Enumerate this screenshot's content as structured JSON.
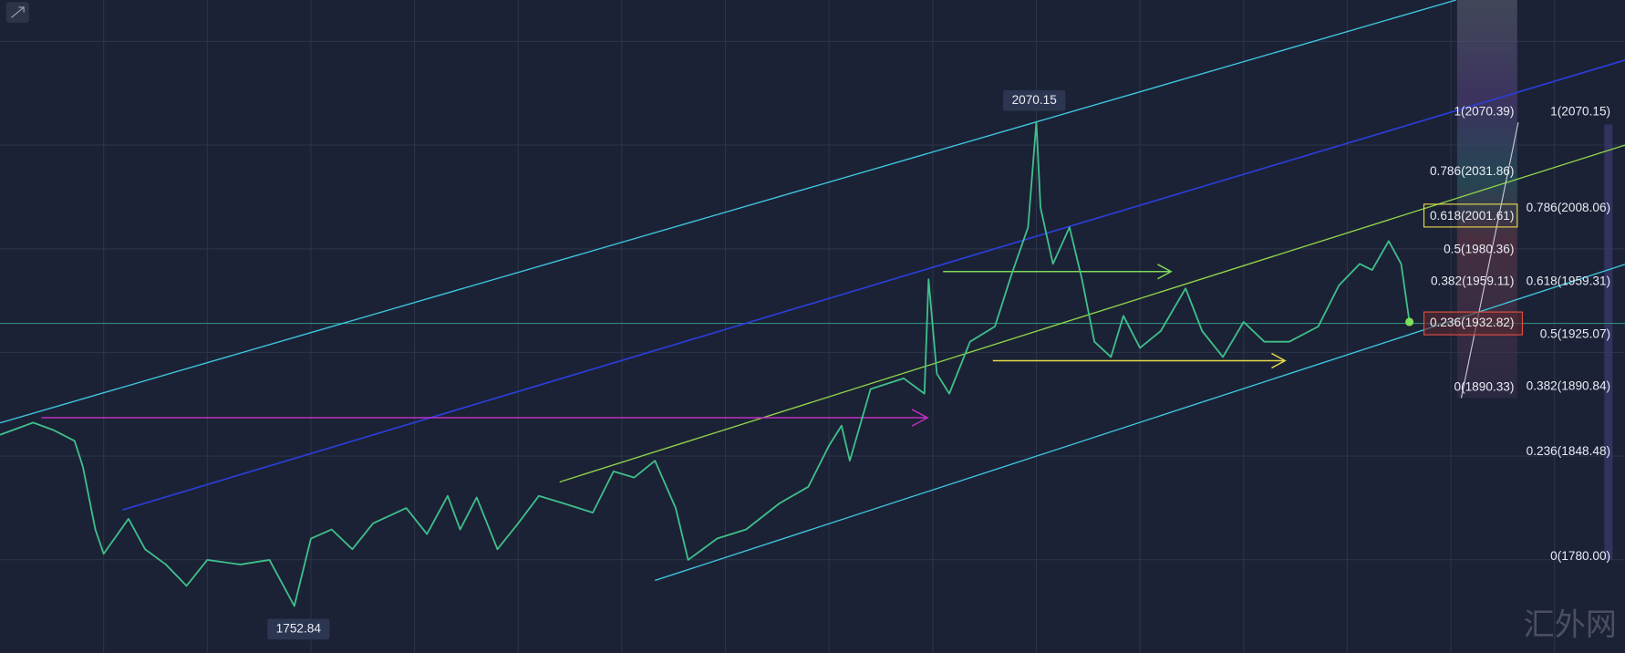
{
  "chart_data": {
    "type": "line",
    "x": [
      0,
      8,
      13,
      18,
      20,
      23,
      25,
      31,
      35,
      40,
      45,
      50,
      58,
      65,
      71,
      75,
      80,
      85,
      90,
      98,
      103,
      108,
      111,
      115,
      120,
      125,
      130,
      136,
      143,
      148,
      153,
      158,
      163,
      166,
      173,
      180,
      188,
      195,
      200,
      203,
      205,
      210,
      218,
      223,
      224,
      226,
      229,
      234,
      240,
      244,
      248,
      250,
      251,
      254,
      258,
      261,
      264,
      268,
      271,
      275,
      280,
      286,
      290,
      295,
      300,
      305,
      311,
      318,
      323,
      328,
      331,
      335,
      338,
      340
    ],
    "values": [
      1865,
      1873,
      1868,
      1861,
      1844,
      1803,
      1787,
      1810,
      1790,
      1780,
      1766,
      1783,
      1780,
      1783,
      1752.84,
      1797,
      1803,
      1790,
      1807,
      1817,
      1800,
      1825,
      1803,
      1824,
      1790,
      1807,
      1825,
      1820,
      1814,
      1841,
      1837,
      1848,
      1817,
      1783,
      1797,
      1803,
      1820,
      1831,
      1858,
      1871,
      1848,
      1895,
      1902,
      1892,
      1967,
      1905,
      1892,
      1926,
      1936,
      1970,
      2001,
      2070.15,
      2014,
      1977,
      2001,
      1967,
      1926,
      1916,
      1943,
      1922,
      1933,
      1961,
      1933,
      1916,
      1939,
      1926,
      1926,
      1936,
      1963,
      1977,
      1973,
      1992,
      1977,
      1939
    ],
    "xlim": [
      0,
      392
    ],
    "ylim": [
      1722,
      2150
    ],
    "color": "#3fbf8a",
    "annotations": [
      "2070.15",
      "1752.84"
    ],
    "fib_left": [
      "1(2070.39)",
      "0.786(2031.86)",
      "0.618(2001.61)",
      "0.5(1980.36)",
      "0.382(1959.11)",
      "0.236(1932.82)",
      "0(1890.33)"
    ],
    "fib_right": [
      "1(2070.15)",
      "0.786(2008.06)",
      "0.618(1959.31)",
      "0.5(1925.07)",
      "0.382(1890.84)",
      "0.236(1848.48)",
      "0(1780.00)"
    ]
  },
  "watermark": "汇外网"
}
